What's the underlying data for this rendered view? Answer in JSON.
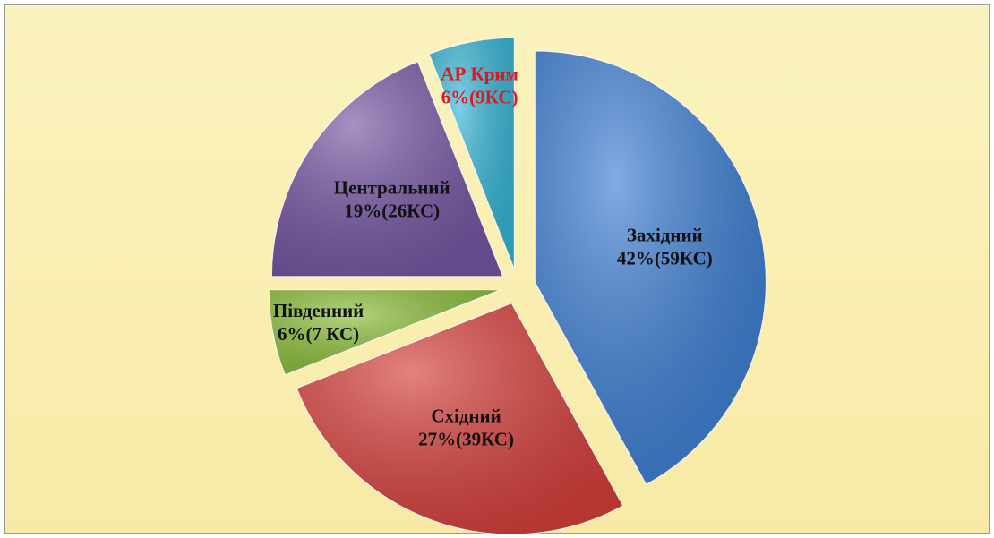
{
  "chart_data": {
    "type": "pie",
    "categories": [
      "Західний",
      "Східний",
      "Південний",
      "Центральний",
      "АР Крим"
    ],
    "values": [
      42,
      27,
      6,
      19,
      6
    ],
    "value_labels": [
      "42%(59КС)",
      "27%(39КС)",
      "6%(7 КС)",
      "19%(26КС)",
      "6%(9КС)"
    ],
    "colors": [
      "#3d7fd4",
      "#d63f3b",
      "#8cbf3a",
      "#7656a3",
      "#36b6d6"
    ],
    "label_colors": [
      "#111111",
      "#111111",
      "#111111",
      "#111111",
      "#e3161e"
    ]
  }
}
